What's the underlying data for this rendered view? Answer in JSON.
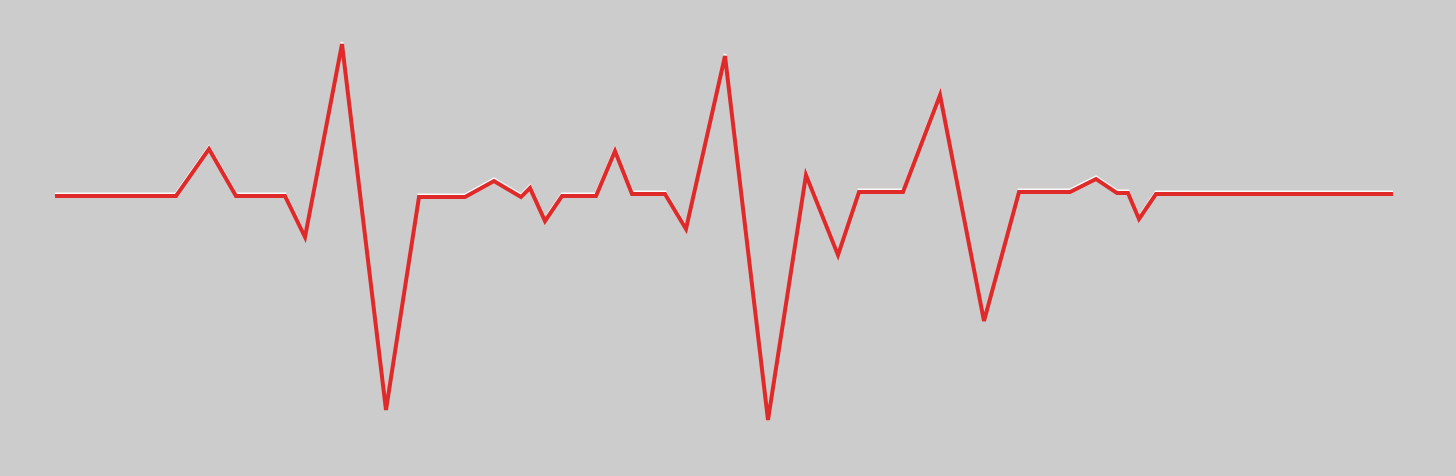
{
  "image": {
    "background_color": "#cccccc",
    "line_color": "#e02a2a",
    "highlight_color": "#ffffff",
    "icon": "heartbeat-line-icon"
  }
}
